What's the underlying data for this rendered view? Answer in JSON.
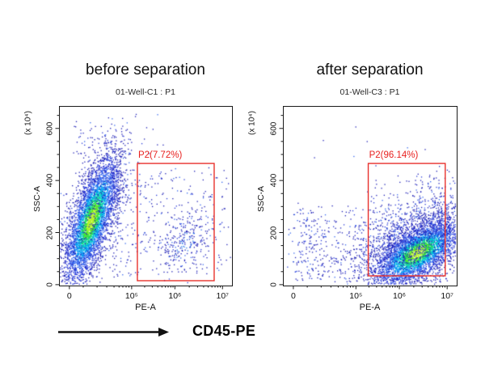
{
  "figure": {
    "panel_titles": [
      "before separation",
      "after separation"
    ],
    "axis_arrow_label": "CD45-PE",
    "gate_color": "#e8312c",
    "gate_text_color": "#e8211f",
    "frame_color": "#1a1a1a",
    "text_color": "#111111",
    "dot_palette": {
      "core_yellow_green": "#b9f32c",
      "green": "#5ce81e",
      "mid_green": "#1bd95b",
      "cyan": "#00ccc2",
      "light_blue": "#009df2",
      "royal_blue": "#2f63ee",
      "blue": "#2a3bd8",
      "dark_blue": "#1d1eb5"
    }
  },
  "chart_data": [
    {
      "type": "scatter",
      "subtype": "flow-cytometry-density-dot-plot",
      "title": "01-Well-C1 : P1",
      "xlabel": "PE-A",
      "ylabel": "SSC-A",
      "y_unit": "(x 10⁴)",
      "x_scale": "biexponential 0 to 10⁷",
      "y_scale": "linear 0 to ~680 (x 10⁴)",
      "x_ticks": [
        {
          "label": "0",
          "f": 0.06
        },
        {
          "label": "10⁵",
          "f": 0.42
        },
        {
          "label": "10⁶",
          "f": 0.67
        },
        {
          "label": "10⁷",
          "f": 0.945
        }
      ],
      "x_minor_f": [
        0.14,
        0.22,
        0.276,
        0.318,
        0.347,
        0.369,
        0.388,
        0.404,
        0.495,
        0.539,
        0.571,
        0.595,
        0.615,
        0.631,
        0.646,
        0.659,
        0.753,
        0.801,
        0.836,
        0.862,
        0.884,
        0.902,
        0.918,
        0.932
      ],
      "y_ticks": [
        {
          "label": "0",
          "f": 0.995
        },
        {
          "label": "200",
          "f": 0.705
        },
        {
          "label": "400",
          "f": 0.415
        },
        {
          "label": "600",
          "f": 0.125
        }
      ],
      "y_minor_f": [
        0.9225,
        0.85,
        0.7775,
        0.6325,
        0.56,
        0.4875,
        0.3425,
        0.27,
        0.1975,
        0.0525
      ],
      "gate": {
        "label": "P2(7.72%)",
        "percent": 7.72,
        "x0f": 0.453,
        "x1f": 0.897,
        "y0f": 0.32,
        "y1f": 0.973
      },
      "populations": [
        {
          "kind": "gauss",
          "n": 4300,
          "cx": 0.185,
          "cy": 0.635,
          "sMaj": 40,
          "sMin": 11.5,
          "angle": -72,
          "palette": "density",
          "note": "main SSC-high CD45-negative population"
        },
        {
          "kind": "gauss",
          "n": 750,
          "cx": 0.185,
          "cy": 0.63,
          "sMaj": 56,
          "sMin": 20,
          "angle": -72,
          "palette": "blue"
        },
        {
          "kind": "uniform",
          "n": 45,
          "x0": 0.08,
          "x1": 0.33,
          "y0": 0.07,
          "y1": 0.3,
          "palette": "blue"
        },
        {
          "kind": "uniform",
          "n": 110,
          "x0": 0.3,
          "x1": 0.47,
          "y0": 0.36,
          "y1": 0.95,
          "palette": "blue"
        },
        {
          "kind": "gauss",
          "n": 280,
          "cx": 0.724,
          "cy": 0.77,
          "sMaj": 26,
          "sMin": 16,
          "angle": -60,
          "palette": "sparseblue",
          "note": "small CD45-PE positive population inside gate"
        },
        {
          "kind": "uniform",
          "n": 150,
          "x0": 0.47,
          "x1": 0.89,
          "y0": 0.34,
          "y1": 0.82,
          "palette": "blue"
        },
        {
          "kind": "uniform",
          "n": 25,
          "x0": 0.9,
          "x1": 0.99,
          "y0": 0.35,
          "y1": 0.95,
          "palette": "blue"
        }
      ]
    },
    {
      "type": "scatter",
      "subtype": "flow-cytometry-density-dot-plot",
      "title": "01-Well-C3 : P1",
      "xlabel": "PE-A",
      "ylabel": "SSC-A",
      "y_unit": "(x 10⁴)",
      "x_scale": "biexponential 0 to 10⁷",
      "y_scale": "linear 0 to ~680 (x 10⁴)",
      "x_ticks": [
        {
          "label": "0",
          "f": 0.06
        },
        {
          "label": "10⁵",
          "f": 0.42
        },
        {
          "label": "10⁶",
          "f": 0.67
        },
        {
          "label": "10⁷",
          "f": 0.945
        }
      ],
      "x_minor_f": [
        0.14,
        0.22,
        0.276,
        0.318,
        0.347,
        0.369,
        0.388,
        0.404,
        0.495,
        0.539,
        0.571,
        0.595,
        0.615,
        0.631,
        0.646,
        0.659,
        0.753,
        0.801,
        0.836,
        0.862,
        0.884,
        0.902,
        0.918,
        0.932
      ],
      "y_ticks": [
        {
          "label": "0",
          "f": 0.995
        },
        {
          "label": "200",
          "f": 0.705
        },
        {
          "label": "400",
          "f": 0.415
        },
        {
          "label": "600",
          "f": 0.125
        }
      ],
      "y_minor_f": [
        0.9225,
        0.85,
        0.7775,
        0.6325,
        0.56,
        0.4875,
        0.3425,
        0.27,
        0.1975,
        0.0525
      ],
      "gate": {
        "label": "P2(96.14%)",
        "percent": 96.14,
        "x0f": 0.491,
        "x1f": 0.934,
        "y0f": 0.32,
        "y1f": 0.946
      },
      "populations": [
        {
          "kind": "gauss",
          "n": 3800,
          "cx": 0.772,
          "cy": 0.815,
          "sMaj": 30,
          "sMin": 14,
          "angle": -33,
          "palette": "density",
          "note": "main CD45-PE positive population inside gate"
        },
        {
          "kind": "gauss",
          "n": 1800,
          "cx": 0.74,
          "cy": 0.74,
          "sMaj": 48,
          "sMin": 26,
          "angle": -30,
          "palette": "blue"
        },
        {
          "kind": "uniform",
          "n": 28,
          "x0": 0.5,
          "x1": 0.96,
          "y0": 0.36,
          "y1": 0.52,
          "palette": "blue"
        },
        {
          "kind": "uniform",
          "n": 130,
          "x0": 0.055,
          "x1": 0.46,
          "y0": 0.55,
          "y1": 0.97,
          "palette": "blue"
        },
        {
          "kind": "gauss",
          "n": 70,
          "cx": 0.163,
          "cy": 0.703,
          "sMaj": 13,
          "sMin": 16,
          "angle": 0,
          "palette": "blue"
        },
        {
          "kind": "gauss",
          "n": 60,
          "cx": 0.186,
          "cy": 0.896,
          "sMaj": 15,
          "sMin": 10,
          "angle": 0,
          "palette": "blue"
        },
        {
          "kind": "uniform",
          "n": 8,
          "x0": 0.1,
          "x1": 0.9,
          "y0": 0.1,
          "y1": 0.34,
          "palette": "blue"
        }
      ]
    }
  ]
}
